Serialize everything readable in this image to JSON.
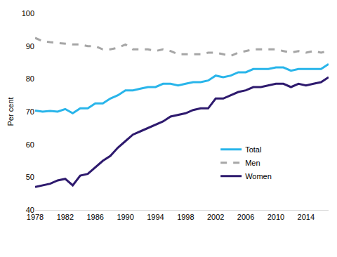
{
  "chart_data": {
    "type": "line",
    "y_label": "Per cent",
    "x": [
      1978,
      1979,
      1980,
      1981,
      1982,
      1983,
      1984,
      1985,
      1986,
      1987,
      1988,
      1989,
      1990,
      1991,
      1992,
      1993,
      1994,
      1995,
      1996,
      1997,
      1998,
      1999,
      2000,
      2001,
      2002,
      2003,
      2004,
      2005,
      2006,
      2007,
      2008,
      2009,
      2010,
      2011,
      2012,
      2013,
      2014,
      2015,
      2016,
      2017
    ],
    "series": [
      {
        "name": "Total",
        "color": "#29b5ea",
        "line_style": "solid",
        "values": [
          70.3,
          70.0,
          70.2,
          70.0,
          70.8,
          69.5,
          71.0,
          71.0,
          72.5,
          72.5,
          74.0,
          75.0,
          76.5,
          76.5,
          77.0,
          77.5,
          77.5,
          78.5,
          78.5,
          78.0,
          78.5,
          79.0,
          79.0,
          79.5,
          81.0,
          80.5,
          81.0,
          82.0,
          82.0,
          83.0,
          83.0,
          83.0,
          83.5,
          83.5,
          82.5,
          83.0,
          83.0,
          83.0,
          83.0,
          84.5
        ]
      },
      {
        "name": "Men",
        "color": "#a6a6a6",
        "line_style": "dashed",
        "values": [
          92.5,
          91.5,
          91.2,
          91.0,
          90.8,
          90.5,
          90.5,
          90.0,
          90.0,
          89.0,
          89.0,
          89.5,
          90.5,
          89.0,
          89.0,
          89.0,
          88.5,
          89.0,
          88.5,
          87.5,
          87.5,
          87.5,
          87.5,
          88.0,
          88.0,
          87.5,
          87.0,
          88.0,
          88.5,
          89.0,
          89.0,
          89.0,
          89.0,
          88.5,
          88.0,
          88.5,
          88.0,
          88.5,
          88.0,
          88.5
        ]
      },
      {
        "name": "Women",
        "color": "#2e1a6e",
        "line_style": "solid",
        "values": [
          47.0,
          47.5,
          48.0,
          49.0,
          49.5,
          47.5,
          50.5,
          51.0,
          53.0,
          55.0,
          56.5,
          59.0,
          61.0,
          63.0,
          64.0,
          65.0,
          66.0,
          67.0,
          68.5,
          69.0,
          69.5,
          70.5,
          71.0,
          71.0,
          74.0,
          74.0,
          75.0,
          76.0,
          76.5,
          77.5,
          77.5,
          78.0,
          78.5,
          78.5,
          77.5,
          78.5,
          78.0,
          78.5,
          79.0,
          80.5
        ]
      }
    ],
    "xlim": [
      1978,
      2017
    ],
    "xticks": [
      1978,
      1982,
      1986,
      1990,
      1994,
      1998,
      2002,
      2006,
      2010,
      2014
    ],
    "ylim": [
      40,
      100
    ],
    "yticks": [
      40,
      50,
      60,
      70,
      80,
      90,
      100
    ],
    "grid": false,
    "legend": "center-right"
  }
}
